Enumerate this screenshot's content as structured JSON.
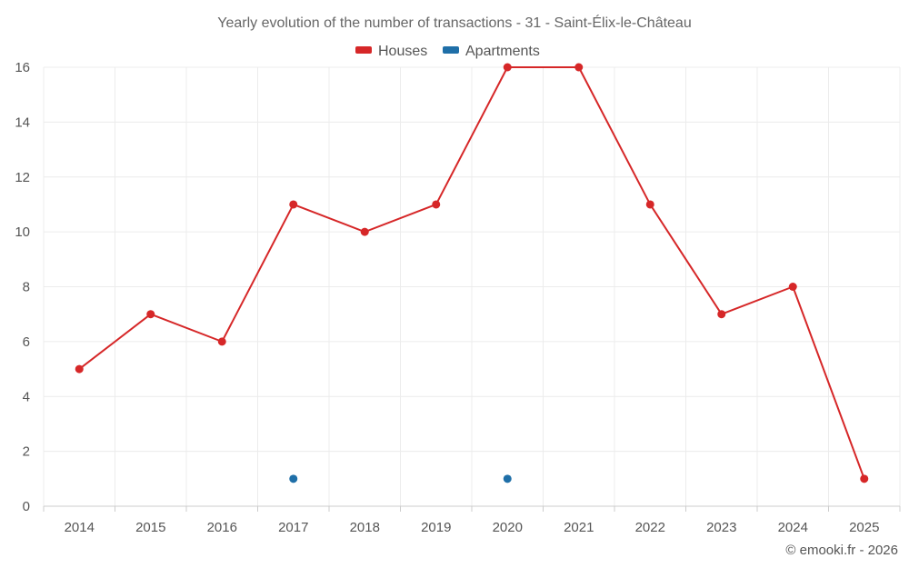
{
  "chart_data": {
    "type": "line",
    "title": "Yearly evolution of the number of transactions - 31 - Saint-Élix-le-Château",
    "categories": [
      "2014",
      "2015",
      "2016",
      "2017",
      "2018",
      "2019",
      "2020",
      "2021",
      "2022",
      "2023",
      "2024",
      "2025"
    ],
    "series": [
      {
        "name": "Houses",
        "color": "#d62728",
        "connected": true,
        "values": [
          5,
          7,
          6,
          11,
          10,
          11,
          16,
          16,
          11,
          7,
          8,
          1
        ]
      },
      {
        "name": "Apartments",
        "color": "#1f6fa8",
        "connected": false,
        "values": [
          null,
          null,
          null,
          1,
          null,
          null,
          1,
          null,
          null,
          null,
          null,
          null
        ]
      }
    ],
    "ylim": [
      0,
      16
    ],
    "yticks": [
      0,
      2,
      4,
      6,
      8,
      10,
      12,
      14,
      16
    ],
    "grid": true,
    "legend": "top-center",
    "xlabel": "",
    "ylabel": ""
  },
  "credit": "© emooki.fr - 2026"
}
